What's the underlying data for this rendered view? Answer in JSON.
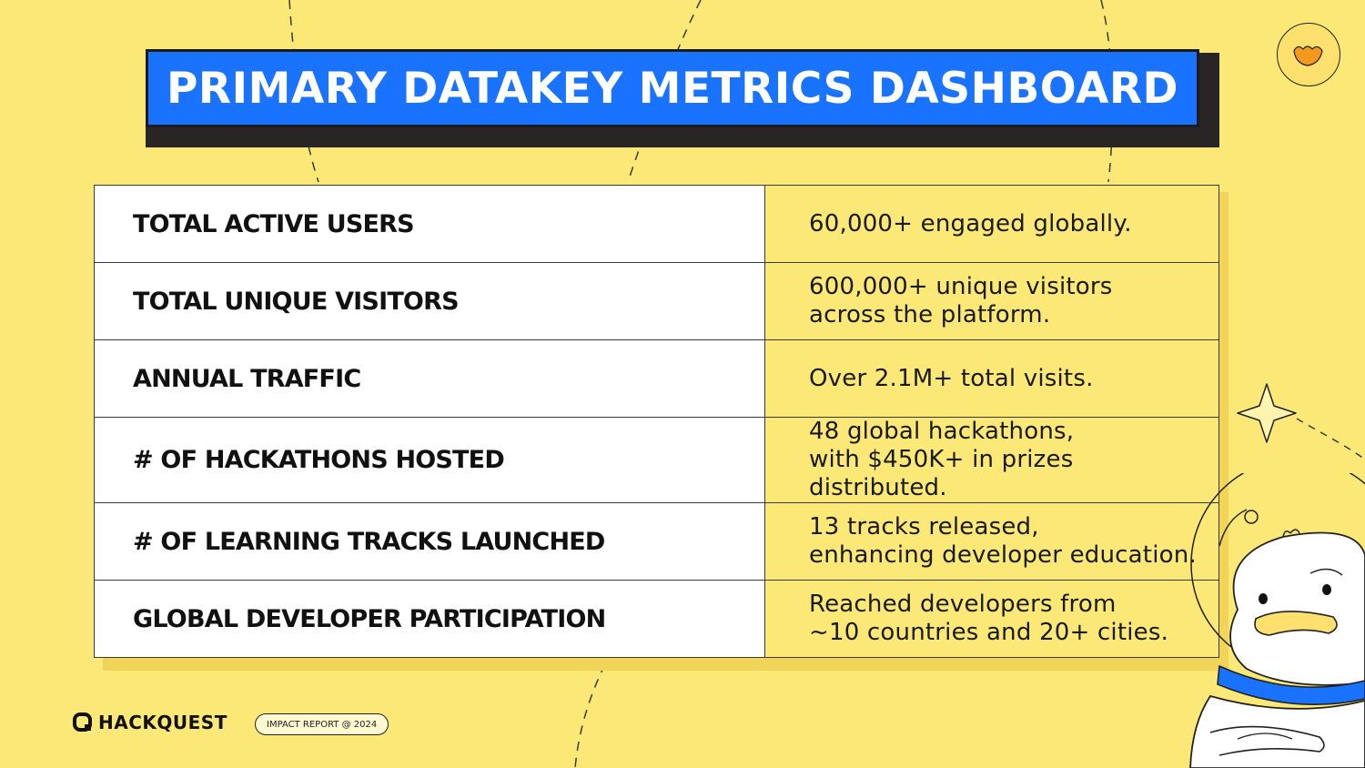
{
  "title": "PRIMARY DATAKEY METRICS DASHBOARD",
  "metrics": [
    {
      "label": "TOTAL ACTIVE USERS",
      "value": "60,000+ engaged globally."
    },
    {
      "label": "TOTAL UNIQUE VISITORS",
      "value": "600,000+ unique visitors\nacross the platform."
    },
    {
      "label": "ANNUAL TRAFFIC",
      "value": "Over 2.1M+ total visits."
    },
    {
      "label": "# OF HACKATHONS HOSTED",
      "value": "48 global hackathons,\nwith $450K+ in prizes distributed."
    },
    {
      "label": "# OF LEARNING TRACKS LAUNCHED",
      "value": "13 tracks released,\nenhancing developer education."
    },
    {
      "label": "GLOBAL DEVELOPER PARTICIPATION",
      "value": "Reached developers from\n~10 countries and 20+ cities."
    }
  ],
  "footer": {
    "brand": "HACKQUEST",
    "report": "IMPACT REPORT @ 2024"
  },
  "colors": {
    "background": "#fce876",
    "title_bar": "#1a73ff",
    "title_shadow": "#2a2525",
    "label_cell": "#ffffff",
    "value_cell": "#fce876",
    "badge_duck": "#f39a1e"
  },
  "icons": {
    "badge": "duck-face-icon",
    "brand_logo": "hackquest-logo-icon",
    "sparkle": "sparkle-star-icon",
    "mascot": "duck-astronaut-mascot"
  }
}
